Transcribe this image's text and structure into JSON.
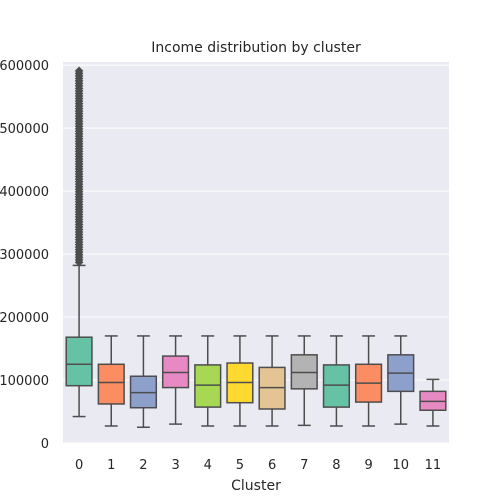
{
  "chart_data": {
    "type": "box",
    "title": "Income distribution by cluster",
    "xlabel": "Cluster",
    "ylabel": "",
    "ylim": [
      0,
      605000
    ],
    "yticks": [
      0,
      100000,
      200000,
      300000,
      400000,
      500000,
      600000
    ],
    "ytick_labels": [
      "0",
      "100000",
      "200000",
      "300000",
      "400000",
      "500000",
      "600000"
    ],
    "grid": true,
    "background": "#eaeaf2",
    "box_edge_color": "#4d4d4d",
    "categories": [
      "0",
      "1",
      "2",
      "3",
      "4",
      "5",
      "6",
      "7",
      "8",
      "9",
      "10",
      "11"
    ],
    "boxes": [
      {
        "whisker_low": 42000,
        "q1": 91000,
        "median": 125000,
        "q3": 168000,
        "whisker_high": 282000,
        "outliers_from": 287000,
        "outliers_to": 592000,
        "color": "#66c2a5"
      },
      {
        "whisker_low": 27000,
        "q1": 62000,
        "median": 96000,
        "q3": 125000,
        "whisker_high": 170000,
        "color": "#fc8d62"
      },
      {
        "whisker_low": 25000,
        "q1": 56000,
        "median": 80000,
        "q3": 106000,
        "whisker_high": 170000,
        "color": "#8da0cb"
      },
      {
        "whisker_low": 30000,
        "q1": 88000,
        "median": 112000,
        "q3": 138000,
        "whisker_high": 170000,
        "color": "#e78ac3"
      },
      {
        "whisker_low": 27000,
        "q1": 57000,
        "median": 92000,
        "q3": 124000,
        "whisker_high": 170000,
        "color": "#a6d854"
      },
      {
        "whisker_low": 27000,
        "q1": 64000,
        "median": 96000,
        "q3": 127000,
        "whisker_high": 170000,
        "color": "#ffd92f"
      },
      {
        "whisker_low": 27000,
        "q1": 54000,
        "median": 88000,
        "q3": 120000,
        "whisker_high": 170000,
        "color": "#e5c494"
      },
      {
        "whisker_low": 28000,
        "q1": 86000,
        "median": 112000,
        "q3": 140000,
        "whisker_high": 170000,
        "color": "#b3b3b3"
      },
      {
        "whisker_low": 27000,
        "q1": 57000,
        "median": 92000,
        "q3": 124000,
        "whisker_high": 170000,
        "color": "#66c2a5"
      },
      {
        "whisker_low": 27000,
        "q1": 65000,
        "median": 95000,
        "q3": 125000,
        "whisker_high": 170000,
        "color": "#fc8d62"
      },
      {
        "whisker_low": 30000,
        "q1": 82000,
        "median": 111000,
        "q3": 140000,
        "whisker_high": 170000,
        "color": "#8da0cb"
      },
      {
        "whisker_low": 27000,
        "q1": 52000,
        "median": 66000,
        "q3": 82000,
        "whisker_high": 101000,
        "color": "#e78ac3"
      }
    ]
  }
}
